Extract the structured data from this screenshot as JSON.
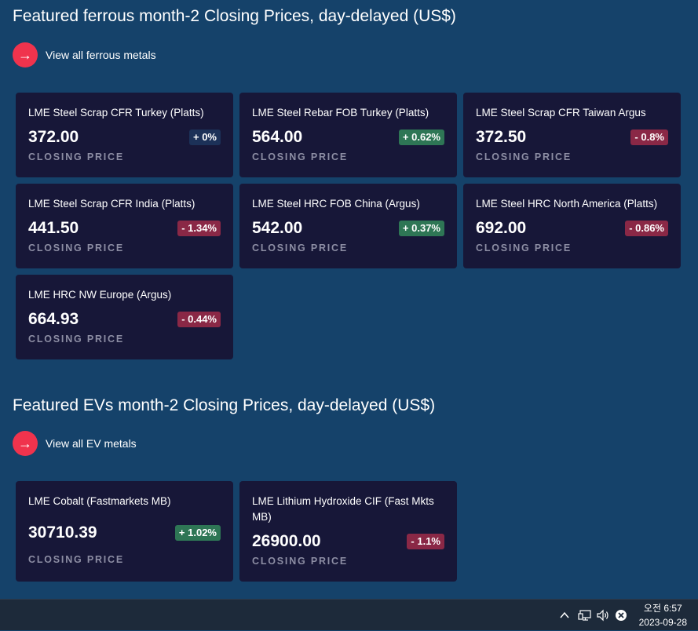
{
  "ferrous": {
    "title": "Featured ferrous month-2 Closing Prices, day-delayed (US$)",
    "view_all_label": "View all ferrous metals",
    "cards": [
      {
        "name": "LME Steel Scrap CFR Turkey (Platts)",
        "price": "372.00",
        "change": "+ 0%",
        "trend": "neutral",
        "caption": "CLOSING PRICE"
      },
      {
        "name": "LME Steel Rebar FOB Turkey (Platts)",
        "price": "564.00",
        "change": "+ 0.62%",
        "trend": "up",
        "caption": "CLOSING PRICE"
      },
      {
        "name": "LME Steel Scrap CFR Taiwan Argus",
        "price": "372.50",
        "change": "- 0.8%",
        "trend": "down",
        "caption": "CLOSING PRICE"
      },
      {
        "name": "LME Steel Scrap CFR India (Platts)",
        "price": "441.50",
        "change": "- 1.34%",
        "trend": "down",
        "caption": "CLOSING PRICE"
      },
      {
        "name": "LME Steel HRC FOB China (Argus)",
        "price": "542.00",
        "change": "+ 0.37%",
        "trend": "up",
        "caption": "CLOSING PRICE"
      },
      {
        "name": "LME Steel HRC North America (Platts)",
        "price": "692.00",
        "change": "- 0.86%",
        "trend": "down",
        "caption": "CLOSING PRICE"
      },
      {
        "name": "LME HRC NW Europe (Argus)",
        "price": "664.93",
        "change": "- 0.44%",
        "trend": "down",
        "caption": "CLOSING PRICE"
      }
    ]
  },
  "evs": {
    "title": "Featured EVs month-2 Closing Prices, day-delayed (US$)",
    "view_all_label": "View all EV metals",
    "cards": [
      {
        "name": "LME Cobalt (Fastmarkets MB)",
        "price": "30710.39",
        "change": "+ 1.02%",
        "trend": "up",
        "caption": "CLOSING PRICE"
      },
      {
        "name": "LME Lithium Hydroxide CIF (Fast Mkts MB)",
        "price": "26900.00",
        "change": "- 1.1%",
        "trend": "down",
        "caption": "CLOSING PRICE"
      }
    ]
  },
  "taskbar": {
    "time": "오전 6:57",
    "date": "2023-09-28",
    "icons": [
      "chevron-up-icon",
      "network-icon",
      "volume-icon",
      "close-circle-icon"
    ]
  },
  "colors": {
    "background": "#15426a",
    "card": "#171738",
    "accent": "#f0334d",
    "up": "#2e7655",
    "down": "#8a2846",
    "neutral": "#1c3158"
  }
}
